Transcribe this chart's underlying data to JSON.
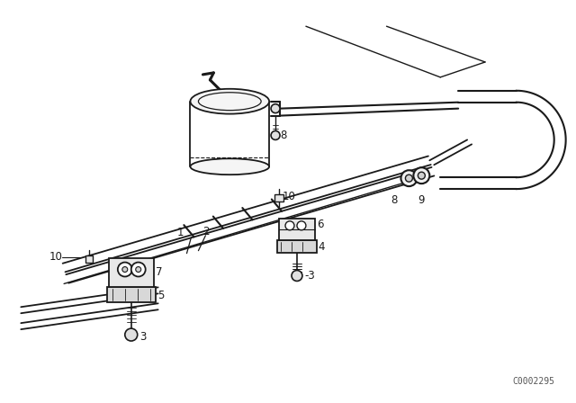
{
  "background_color": "#ffffff",
  "line_color": "#1a1a1a",
  "watermark": "C0002295",
  "label_fontsize": 8.5
}
